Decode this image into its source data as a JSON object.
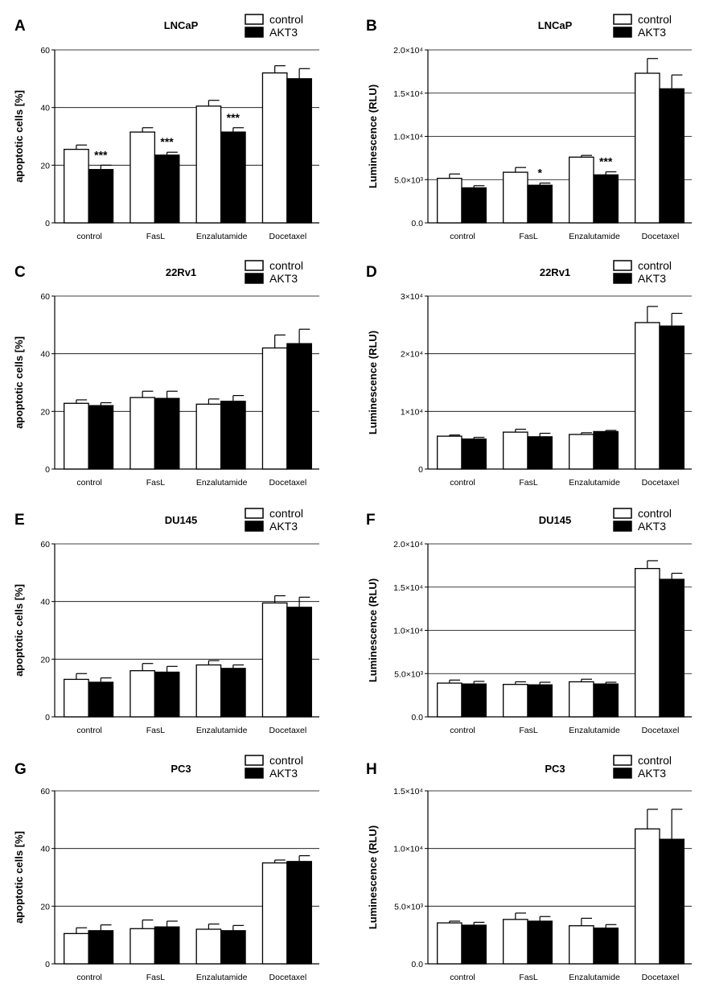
{
  "colors": {
    "control": "#ffffff",
    "akt3": "#000000",
    "axis": "#000000",
    "grid": "#000000"
  },
  "legend": {
    "control": "control",
    "akt3": "AKT3"
  },
  "categories": [
    "control",
    "FasL",
    "Enzalutamide",
    "Docetaxel"
  ],
  "panels": [
    {
      "id": "A",
      "title": "LNCaP",
      "ylabel": "apoptotic cells [%]",
      "type": "bar",
      "ylim": [
        0,
        60
      ],
      "ticks": [
        0,
        20,
        40,
        60
      ],
      "tick_labels": [
        "0",
        "20",
        "40",
        "60"
      ],
      "grid": [
        20,
        40,
        60
      ],
      "series": [
        {
          "name": "control",
          "values": [
            25.5,
            31.5,
            40.5,
            52
          ],
          "errors": [
            1.5,
            1.5,
            2,
            2.5
          ]
        },
        {
          "name": "AKT3",
          "values": [
            18.5,
            23.5,
            31.5,
            50
          ],
          "errors": [
            1.5,
            1,
            1.5,
            3.5
          ]
        }
      ],
      "annotations": [
        "***",
        "***",
        "***",
        ""
      ]
    },
    {
      "id": "B",
      "title": "LNCaP",
      "ylabel": "Luminescence (RLU)",
      "type": "bar",
      "ylim": [
        0,
        20000
      ],
      "ticks": [
        0,
        5000,
        10000,
        15000,
        20000
      ],
      "tick_labels": [
        "0.0",
        "5.0×10³",
        "1.0×10⁴",
        "1.5×10⁴",
        "2.0×10⁴"
      ],
      "grid": [
        5000,
        10000,
        15000,
        20000
      ],
      "series": [
        {
          "name": "control",
          "values": [
            5150,
            5850,
            7600,
            17300
          ],
          "errors": [
            500,
            550,
            200,
            1700
          ]
        },
        {
          "name": "AKT3",
          "values": [
            4050,
            4350,
            5550,
            15500
          ],
          "errors": [
            250,
            250,
            350,
            1600
          ]
        }
      ],
      "annotations": [
        "",
        "*",
        "***",
        ""
      ]
    },
    {
      "id": "C",
      "title": "22Rv1",
      "ylabel": "apoptotic cells [%]",
      "type": "bar",
      "ylim": [
        0,
        60
      ],
      "ticks": [
        0,
        20,
        40,
        60
      ],
      "tick_labels": [
        "0",
        "20",
        "40",
        "60"
      ],
      "grid": [
        20,
        40,
        60
      ],
      "series": [
        {
          "name": "control",
          "values": [
            22.8,
            24.8,
            22.5,
            42
          ],
          "errors": [
            1.2,
            2.2,
            1.8,
            4.5
          ]
        },
        {
          "name": "AKT3",
          "values": [
            22,
            24.5,
            23.5,
            43.5
          ],
          "errors": [
            1,
            2.5,
            2,
            5
          ]
        }
      ],
      "annotations": [
        "",
        "",
        "",
        ""
      ]
    },
    {
      "id": "D",
      "title": "22Rv1",
      "ylabel": "Luminescence (RLU)",
      "type": "bar",
      "ylim": [
        0,
        30000
      ],
      "ticks": [
        0,
        10000,
        20000,
        30000
      ],
      "tick_labels": [
        "0",
        "1×10⁴",
        "2×10⁴",
        "3×10⁴"
      ],
      "grid": [
        10000,
        20000,
        30000
      ],
      "series": [
        {
          "name": "control",
          "values": [
            5700,
            6400,
            6000,
            25400
          ],
          "errors": [
            200,
            500,
            300,
            2800
          ]
        },
        {
          "name": "AKT3",
          "values": [
            5200,
            5600,
            6500,
            24800
          ],
          "errors": [
            300,
            600,
            200,
            2200
          ]
        }
      ],
      "annotations": [
        "",
        "",
        "",
        ""
      ]
    },
    {
      "id": "E",
      "title": "DU145",
      "ylabel": "apoptotic cells [%]",
      "type": "bar",
      "ylim": [
        0,
        60
      ],
      "ticks": [
        0,
        20,
        40,
        60
      ],
      "tick_labels": [
        "0",
        "20",
        "40",
        "60"
      ],
      "grid": [
        20,
        40,
        60
      ],
      "series": [
        {
          "name": "control",
          "values": [
            13,
            16,
            18,
            39.5
          ],
          "errors": [
            2,
            2.5,
            1.5,
            2.5
          ]
        },
        {
          "name": "AKT3",
          "values": [
            12,
            15.5,
            16.8,
            38
          ],
          "errors": [
            1.5,
            2,
            1.2,
            3.5
          ]
        }
      ],
      "annotations": [
        "",
        "",
        "",
        ""
      ]
    },
    {
      "id": "F",
      "title": "DU145",
      "ylabel": "Luminescence (RLU)",
      "type": "bar",
      "ylim": [
        0,
        20000
      ],
      "ticks": [
        0,
        5000,
        10000,
        15000,
        20000
      ],
      "tick_labels": [
        "0.0",
        "5.0×10³",
        "1.0×10⁴",
        "1.5×10⁴",
        "2.0×10⁴"
      ],
      "grid": [
        5000,
        10000,
        15000,
        20000
      ],
      "series": [
        {
          "name": "control",
          "values": [
            3900,
            3750,
            4050,
            17150
          ],
          "errors": [
            350,
            300,
            300,
            900
          ]
        },
        {
          "name": "AKT3",
          "values": [
            3800,
            3700,
            3800,
            15900
          ],
          "errors": [
            300,
            300,
            200,
            700
          ]
        }
      ],
      "annotations": [
        "",
        "",
        "",
        ""
      ]
    },
    {
      "id": "G",
      "title": "PC3",
      "ylabel": "apoptotic cells [%]",
      "type": "bar",
      "ylim": [
        0,
        60
      ],
      "ticks": [
        0,
        20,
        40,
        60
      ],
      "tick_labels": [
        "0",
        "20",
        "40",
        "60"
      ],
      "grid": [
        20,
        40,
        60
      ],
      "series": [
        {
          "name": "control",
          "values": [
            10.5,
            12.2,
            12,
            35
          ],
          "errors": [
            2,
            3,
            1.8,
            1
          ]
        },
        {
          "name": "AKT3",
          "values": [
            11.5,
            12.8,
            11.5,
            35.5
          ],
          "errors": [
            2,
            2,
            1.8,
            2
          ]
        }
      ],
      "annotations": [
        "",
        "",
        "",
        ""
      ]
    },
    {
      "id": "H",
      "title": "PC3",
      "ylabel": "Luminescence (RLU)",
      "type": "bar",
      "ylim": [
        0,
        15000
      ],
      "ticks": [
        0,
        5000,
        10000,
        15000
      ],
      "tick_labels": [
        "0.0",
        "5.0×10³",
        "1.0×10⁴",
        "1.5×10⁴"
      ],
      "grid": [
        5000,
        10000,
        15000
      ],
      "series": [
        {
          "name": "control",
          "values": [
            3550,
            3850,
            3300,
            11700
          ],
          "errors": [
            150,
            550,
            650,
            1700
          ]
        },
        {
          "name": "AKT3",
          "values": [
            3350,
            3700,
            3100,
            10800
          ],
          "errors": [
            250,
            400,
            300,
            2600
          ]
        }
      ],
      "annotations": [
        "",
        "",
        "",
        ""
      ]
    }
  ]
}
